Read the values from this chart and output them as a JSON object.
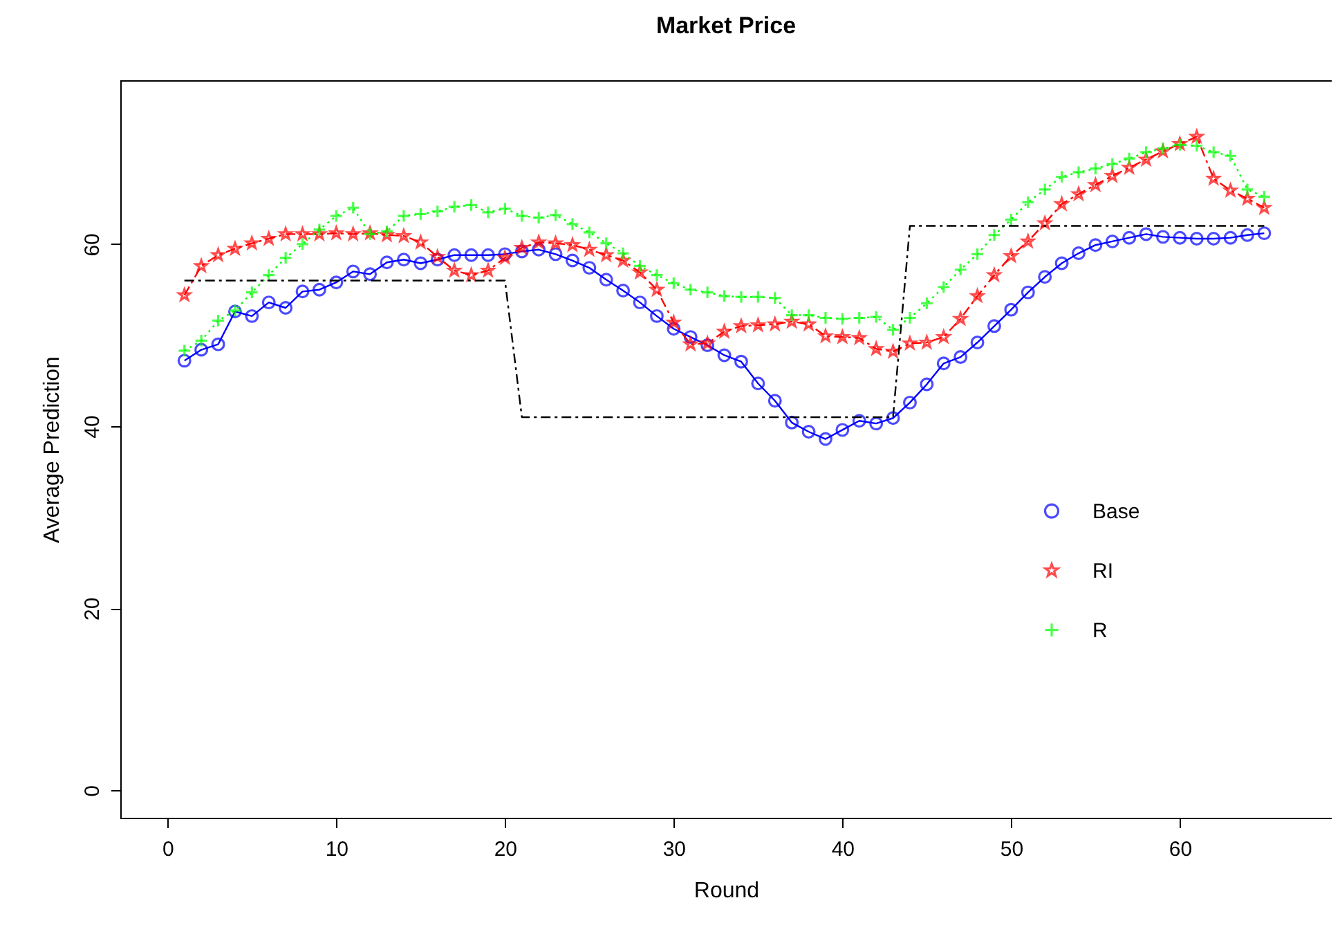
{
  "chart_data": {
    "type": "line",
    "title": "Market Price",
    "xlabel": "Round",
    "ylabel": "Average Prediction",
    "x": [
      1,
      2,
      3,
      4,
      5,
      6,
      7,
      8,
      9,
      10,
      11,
      12,
      13,
      14,
      15,
      16,
      17,
      18,
      19,
      20,
      21,
      22,
      23,
      24,
      25,
      26,
      27,
      28,
      29,
      30,
      31,
      32,
      33,
      34,
      35,
      36,
      37,
      38,
      39,
      40,
      41,
      42,
      43,
      44,
      45,
      46,
      47,
      48,
      49,
      50,
      51,
      52,
      53,
      54,
      55,
      56,
      57,
      58,
      59,
      60,
      61,
      62,
      63,
      64,
      65
    ],
    "series": [
      {
        "name": "Base",
        "color": "#0000ff",
        "marker": "circle",
        "line_style": "solid",
        "values": [
          47.2,
          48.4,
          49.0,
          52.6,
          52.1,
          53.6,
          53.0,
          54.8,
          55.0,
          55.8,
          57.0,
          56.7,
          58.0,
          58.3,
          57.9,
          58.3,
          58.8,
          58.8,
          58.8,
          58.9,
          59.2,
          59.4,
          58.9,
          58.2,
          57.4,
          56.1,
          54.9,
          53.6,
          52.1,
          50.7,
          49.8,
          48.9,
          47.8,
          47.1,
          44.7,
          42.8,
          40.4,
          39.4,
          38.6,
          39.6,
          40.6,
          40.3,
          40.9,
          42.6,
          44.6,
          46.9,
          47.6,
          49.2,
          51.0,
          52.8,
          54.7,
          56.4,
          57.9,
          59.0,
          59.9,
          60.3,
          60.7,
          61.1,
          60.8,
          60.7,
          60.6,
          60.6,
          60.7,
          61.0,
          61.2
        ]
      },
      {
        "name": "RI",
        "color": "#ff0000",
        "marker": "star",
        "line_style": "dashed",
        "values": [
          54.4,
          57.6,
          58.8,
          59.5,
          60.1,
          60.6,
          61.1,
          61.1,
          61.1,
          61.2,
          61.1,
          61.2,
          61.0,
          60.9,
          60.2,
          58.6,
          57.1,
          56.6,
          57.1,
          58.5,
          59.6,
          60.2,
          60.1,
          59.9,
          59.4,
          58.8,
          58.2,
          56.9,
          55.0,
          51.4,
          49.0,
          49.1,
          50.4,
          51.0,
          51.1,
          51.2,
          51.5,
          51.2,
          49.9,
          49.8,
          49.7,
          48.5,
          48.2,
          49.1,
          49.2,
          49.8,
          51.8,
          54.3,
          56.6,
          58.7,
          60.3,
          62.3,
          64.4,
          65.5,
          66.5,
          67.5,
          68.4,
          69.3,
          70.2,
          71.0,
          71.8,
          67.2,
          65.9,
          65.0,
          64.0
        ]
      },
      {
        "name": "R",
        "color": "#00ff00",
        "marker": "cross",
        "line_style": "dotted",
        "values": [
          48.3,
          49.4,
          51.6,
          52.7,
          54.7,
          56.6,
          58.5,
          60.0,
          61.6,
          63.1,
          64.0,
          61.1,
          61.4,
          63.1,
          63.3,
          63.6,
          64.1,
          64.3,
          63.5,
          63.9,
          63.1,
          62.9,
          63.2,
          62.2,
          61.3,
          60.1,
          59.0,
          57.6,
          56.6,
          55.7,
          55.0,
          54.7,
          54.3,
          54.2,
          54.2,
          54.1,
          52.2,
          52.2,
          51.9,
          51.8,
          51.9,
          52.0,
          50.6,
          51.9,
          53.5,
          55.3,
          57.2,
          58.9,
          61.0,
          62.7,
          64.6,
          66.0,
          67.4,
          67.9,
          68.3,
          68.8,
          69.4,
          70.1,
          70.5,
          70.9,
          70.8,
          70.1,
          69.7,
          66.0,
          65.2
        ]
      },
      {
        "color": "#000000",
        "marker": "none",
        "line_style": "dashed",
        "x": [
          1,
          20,
          21,
          43,
          44,
          65
        ],
        "values": [
          56,
          56,
          41,
          41,
          62,
          62
        ]
      }
    ],
    "xlim": [
      -2.8,
      69
    ],
    "ylim": [
      -3,
      78
    ],
    "xticks": [
      0,
      10,
      20,
      30,
      40,
      50,
      60
    ],
    "yticks": [
      0,
      20,
      40,
      60
    ],
    "grid": false,
    "legend": "right"
  }
}
